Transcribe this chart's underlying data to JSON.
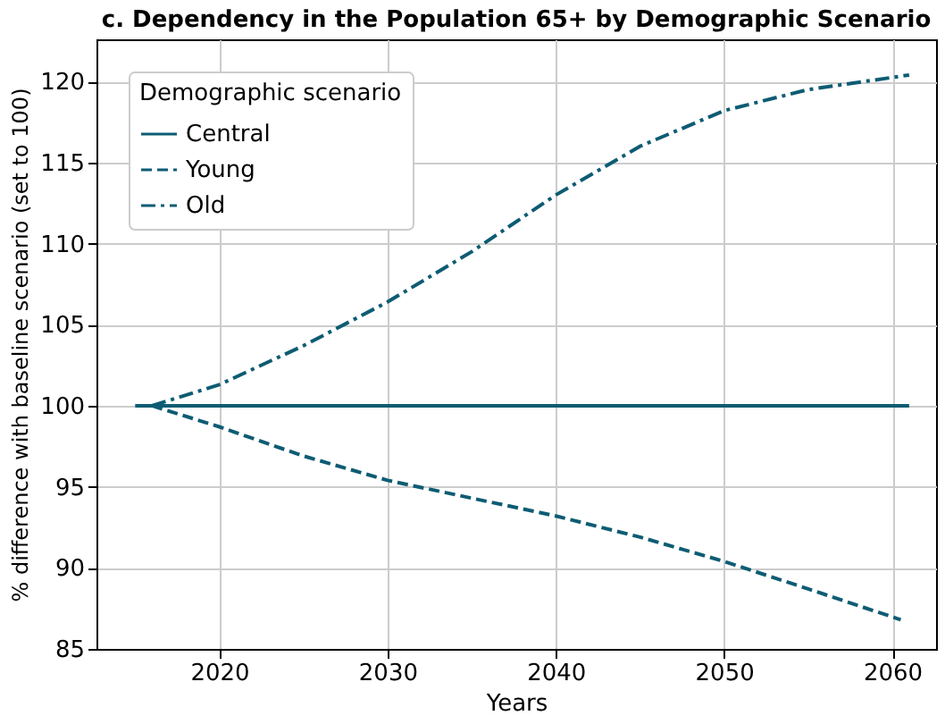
{
  "chart_data": {
    "type": "line",
    "title": "c. Dependency in the Population 65+ by Demographic Scenario",
    "xlabel": "Years",
    "ylabel": "% difference with baseline scenario (set to 100)",
    "legend_title": "Demographic scenario",
    "legend": "top left",
    "grid": true,
    "xlim": [
      2012.7,
      2062.6
    ],
    "xticks": [
      2020,
      2030,
      2040,
      2050,
      2060
    ],
    "ylim": [
      85,
      122.6
    ],
    "yticks": [
      85,
      90,
      95,
      100,
      105,
      110,
      115,
      120
    ],
    "series": [
      {
        "name": "Central",
        "color": "#0d5c73",
        "line_style": "solid",
        "x": [
          2015,
          2061
        ],
        "values": [
          100,
          100
        ]
      },
      {
        "name": "Young",
        "color": "#0d5c73",
        "line_style": "dashed",
        "x": [
          2016,
          2020,
          2025,
          2030,
          2035,
          2040,
          2045,
          2050,
          2055,
          2060.5
        ],
        "values": [
          100,
          98.7,
          96.9,
          95.4,
          94.3,
          93.2,
          91.9,
          90.4,
          88.7,
          86.8
        ]
      },
      {
        "name": "Old",
        "color": "#0d5c73",
        "line_style": "dashdot",
        "x": [
          2016,
          2020,
          2025,
          2030,
          2035,
          2040,
          2045,
          2050,
          2055,
          2061
        ],
        "values": [
          100,
          101.3,
          103.7,
          106.4,
          109.5,
          113,
          116,
          118.2,
          119.5,
          120.4
        ]
      }
    ]
  }
}
